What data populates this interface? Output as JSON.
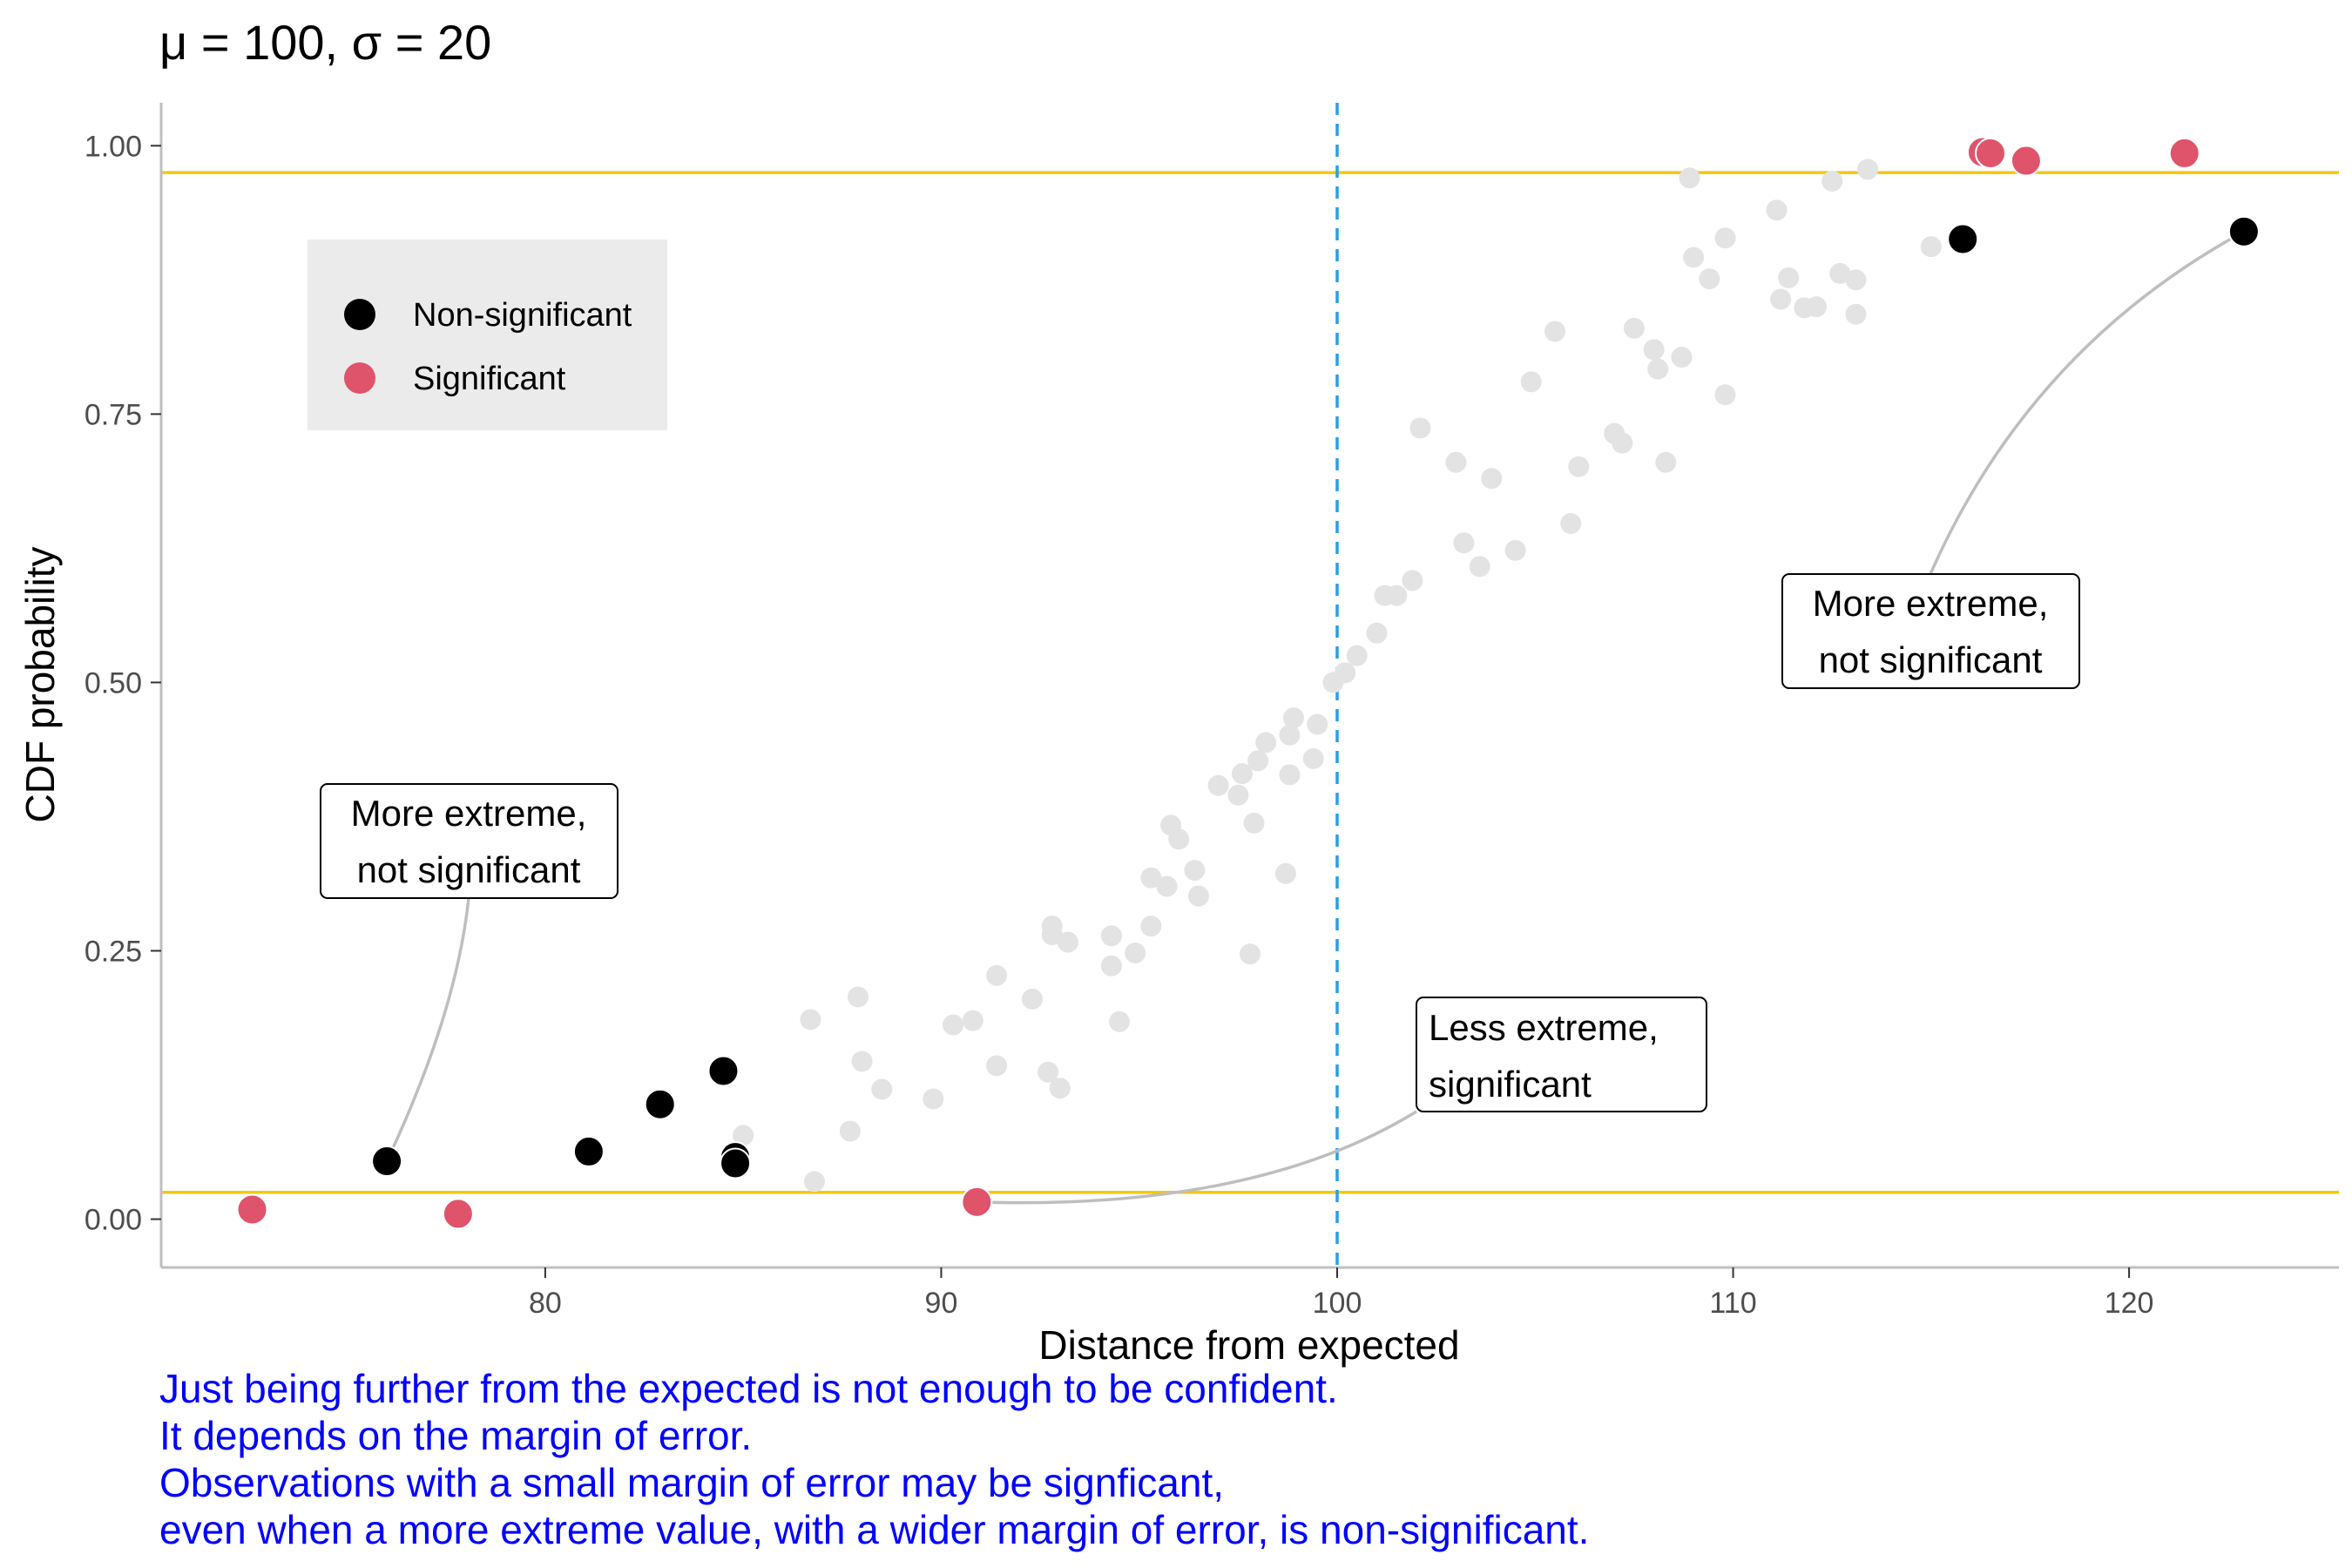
{
  "chart_data": {
    "type": "scatter",
    "title": "μ = 100, σ = 20",
    "xlabel": "Distance from expected",
    "ylabel": "CDF probability",
    "xlim": [
      70.3,
      125.3
    ],
    "ylim": [
      -0.045,
      1.04
    ],
    "x_ticks": [
      80,
      90,
      100,
      110,
      120
    ],
    "y_ticks": [
      0,
      0.25,
      0.5,
      0.75,
      1
    ],
    "x_tick_labels": [
      "80",
      "90",
      "100",
      "110",
      "120"
    ],
    "y_tick_labels": [
      "0.00",
      "0.25",
      "0.50",
      "0.75",
      "1.00"
    ],
    "grid": false,
    "hlines": [
      0.025,
      0.975
    ],
    "vline": 100,
    "colors": {
      "background_points": "#e3e3e3",
      "non_significant": "#000000",
      "significant": "#df536b",
      "threshold_lines": "#f5c710",
      "expected_line": "#2a9ee6",
      "connector": "#bebebe",
      "caption": "#0000ff"
    },
    "legend": {
      "position": "top-left",
      "entries": [
        {
          "label": "Non-significant",
          "color": "#000000"
        },
        {
          "label": "Significant",
          "color": "#df536b"
        }
      ]
    },
    "background_points": [
      [
        86.7,
        0.186
      ],
      [
        86.8,
        0.035
      ],
      [
        87.7,
        0.082
      ],
      [
        87.9,
        0.207
      ],
      [
        88.0,
        0.147
      ],
      [
        88.5,
        0.121
      ],
      [
        89.8,
        0.112
      ],
      [
        90.3,
        0.181
      ],
      [
        90.8,
        0.185
      ],
      [
        91.4,
        0.143
      ],
      [
        91.4,
        0.227
      ],
      [
        92.3,
        0.205
      ],
      [
        92.7,
        0.137
      ],
      [
        92.8,
        0.265
      ],
      [
        92.8,
        0.273
      ],
      [
        93.0,
        0.122
      ],
      [
        93.2,
        0.258
      ],
      [
        94.3,
        0.236
      ],
      [
        94.3,
        0.264
      ],
      [
        94.5,
        0.184
      ],
      [
        94.9,
        0.248
      ],
      [
        95.3,
        0.273
      ],
      [
        95.3,
        0.318
      ],
      [
        95.7,
        0.31
      ],
      [
        95.8,
        0.367
      ],
      [
        96.0,
        0.354
      ],
      [
        96.4,
        0.325
      ],
      [
        96.5,
        0.301
      ],
      [
        97.0,
        0.404
      ],
      [
        97.5,
        0.395
      ],
      [
        97.6,
        0.415
      ],
      [
        97.8,
        0.247
      ],
      [
        97.9,
        0.369
      ],
      [
        98.0,
        0.427
      ],
      [
        98.2,
        0.444
      ],
      [
        98.7,
        0.322
      ],
      [
        98.8,
        0.414
      ],
      [
        98.8,
        0.451
      ],
      [
        98.9,
        0.467
      ],
      [
        99.4,
        0.429
      ],
      [
        99.5,
        0.461
      ],
      [
        99.9,
        0.5
      ],
      [
        100.2,
        0.509
      ],
      [
        100.5,
        0.525
      ],
      [
        101.0,
        0.546
      ],
      [
        101.2,
        0.581
      ],
      [
        101.5,
        0.581
      ],
      [
        101.9,
        0.595
      ],
      [
        102.1,
        0.737
      ],
      [
        103.0,
        0.705
      ],
      [
        103.2,
        0.63
      ],
      [
        103.6,
        0.608
      ],
      [
        103.9,
        0.69
      ],
      [
        104.5,
        0.623
      ],
      [
        104.9,
        0.78
      ],
      [
        105.5,
        0.827
      ],
      [
        105.9,
        0.648
      ],
      [
        106.1,
        0.701
      ],
      [
        107.0,
        0.732
      ],
      [
        107.2,
        0.723
      ],
      [
        107.5,
        0.83
      ],
      [
        108.0,
        0.81
      ],
      [
        108.1,
        0.792
      ],
      [
        108.3,
        0.705
      ],
      [
        108.7,
        0.803
      ],
      [
        108.9,
        0.97
      ],
      [
        109.0,
        0.896
      ],
      [
        109.4,
        0.876
      ],
      [
        109.8,
        0.914
      ],
      [
        109.8,
        0.768
      ],
      [
        111.1,
        0.94
      ],
      [
        111.2,
        0.857
      ],
      [
        111.4,
        0.877
      ],
      [
        111.8,
        0.849
      ],
      [
        112.1,
        0.85
      ],
      [
        112.5,
        0.967
      ],
      [
        112.7,
        0.881
      ],
      [
        113.1,
        0.875
      ],
      [
        113.1,
        0.843
      ],
      [
        113.4,
        0.978
      ],
      [
        115.0,
        0.906
      ],
      [
        85.0,
        0.078
      ]
    ],
    "non_significant_points": [
      [
        76.0,
        0.054
      ],
      [
        81.1,
        0.063
      ],
      [
        82.9,
        0.107
      ],
      [
        84.5,
        0.138
      ],
      [
        84.8,
        0.058
      ],
      [
        84.8,
        0.052
      ],
      [
        115.8,
        0.913
      ],
      [
        122.9,
        0.92
      ]
    ],
    "significant_points": [
      [
        72.6,
        0.009
      ],
      [
        77.8,
        0.005
      ],
      [
        90.9,
        0.016
      ],
      [
        116.3,
        0.994
      ],
      [
        116.5,
        0.993
      ],
      [
        117.4,
        0.986
      ],
      [
        121.4,
        0.993
      ]
    ],
    "annotations": [
      {
        "lines": [
          "More extreme,",
          "not significant"
        ],
        "from": [
          76.0,
          0.054
        ]
      },
      {
        "lines": [
          "More extreme,",
          "not significant"
        ],
        "from": [
          122.9,
          0.92
        ]
      },
      {
        "lines": [
          "Less extreme,",
          "significant"
        ],
        "from": [
          90.9,
          0.016
        ]
      }
    ]
  },
  "caption": [
    "Just being further from the expected is not enough to be confident.",
    "It depends on the margin of error.",
    "Observations with a small margin of error may be signficant,",
    "even when a more extreme value, with a wider margin of error, is non-significant."
  ]
}
